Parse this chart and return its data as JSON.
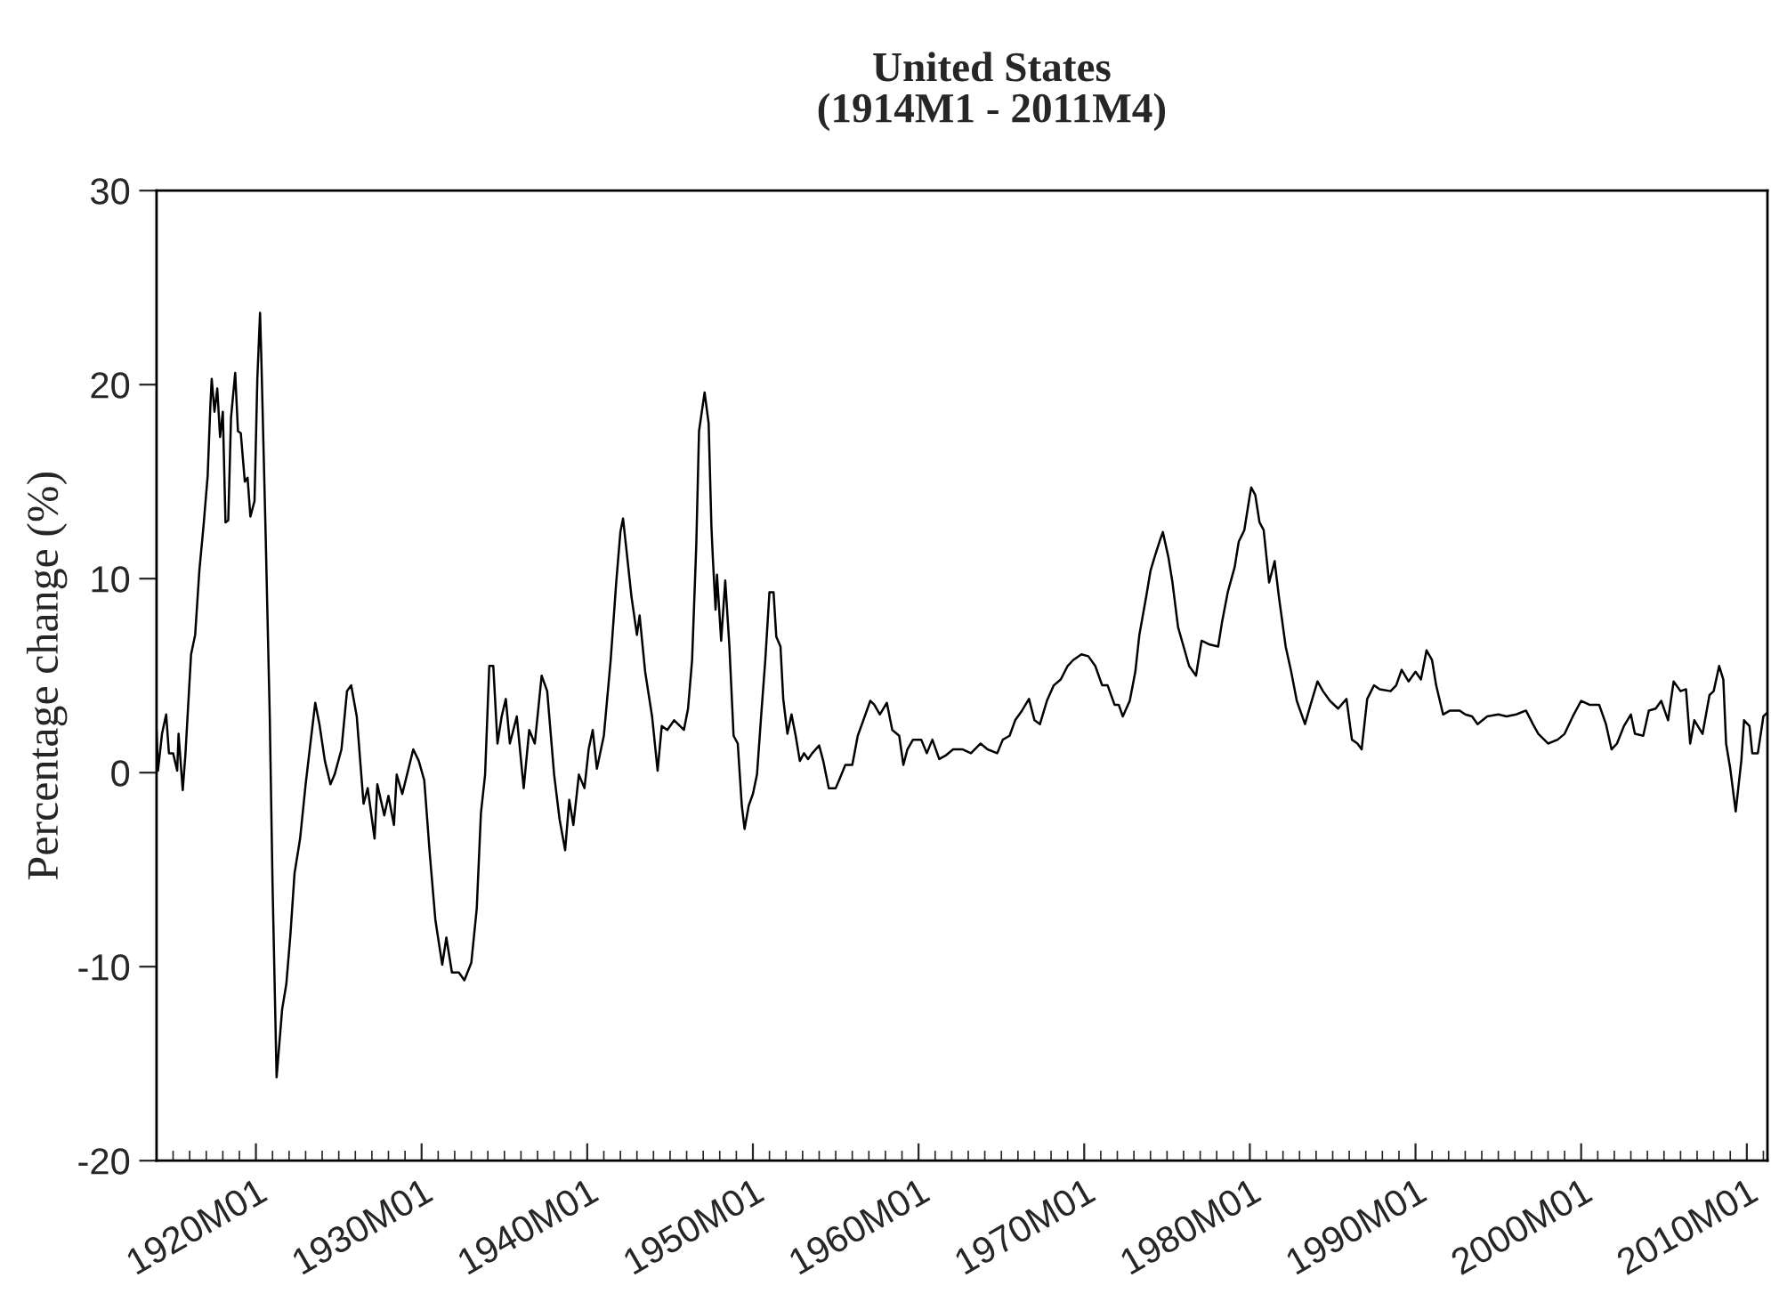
{
  "chart_data": {
    "type": "line",
    "title": "United States",
    "subtitle": "(1914M1 - 2011M4)",
    "ylabel": "Percentage change (%)",
    "xlim": [
      "1914-01",
      "2011-04"
    ],
    "xticks": [
      {
        "value": "1920-01",
        "label": "1920M01"
      },
      {
        "value": "1930-01",
        "label": "1930M01"
      },
      {
        "value": "1940-01",
        "label": "1940M01"
      },
      {
        "value": "1950-01",
        "label": "1950M01"
      },
      {
        "value": "1960-01",
        "label": "1960M01"
      },
      {
        "value": "1970-01",
        "label": "1970M01"
      },
      {
        "value": "1980-01",
        "label": "1980M01"
      },
      {
        "value": "1990-01",
        "label": "1990M01"
      },
      {
        "value": "2000-01",
        "label": "2000M01"
      },
      {
        "value": "2010-01",
        "label": "2010M01"
      }
    ],
    "ylim": [
      -20,
      30
    ],
    "yticks": [
      -20,
      -10,
      0,
      10,
      20,
      30
    ],
    "grid": false,
    "legend": false,
    "marker": "none",
    "line_style": "solid",
    "series": [
      {
        "color": "#000000",
        "x": [
          "1914-01",
          "1914-02",
          "1914-05",
          "1914-08",
          "1914-10",
          "1915-01",
          "1915-04",
          "1915-05",
          "1915-08",
          "1915-10",
          "1916-02",
          "1916-05",
          "1916-08",
          "1916-11",
          "1917-02",
          "1917-04",
          "1917-05",
          "1917-07",
          "1917-09",
          "1917-11",
          "1918-01",
          "1918-03",
          "1918-05",
          "1918-07",
          "1918-10",
          "1918-12",
          "1919-02",
          "1919-05",
          "1919-07",
          "1919-09",
          "1919-12",
          "1920-02",
          "1920-04",
          "1920-05",
          "1920-08",
          "1920-11",
          "1921-01",
          "1921-04",
          "1921-08",
          "1921-11",
          "1922-02",
          "1922-05",
          "1922-09",
          "1923-01",
          "1923-04",
          "1923-08",
          "1923-11",
          "1924-03",
          "1924-07",
          "1924-10",
          "1925-03",
          "1925-07",
          "1925-10",
          "1926-02",
          "1926-07",
          "1926-10",
          "1927-03",
          "1927-05",
          "1927-10",
          "1928-01",
          "1928-05",
          "1928-07",
          "1928-11",
          "1929-07",
          "1929-11",
          "1930-03",
          "1930-07",
          "1930-11",
          "1931-04",
          "1931-07",
          "1931-11",
          "1932-04",
          "1932-08",
          "1933-01",
          "1933-05",
          "1933-08",
          "1933-11",
          "1934-02",
          "1934-05",
          "1934-08",
          "1934-11",
          "1935-02",
          "1935-05",
          "1935-10",
          "1936-03",
          "1936-07",
          "1936-11",
          "1937-04",
          "1937-08",
          "1938-01",
          "1938-05",
          "1938-09",
          "1938-12",
          "1939-03",
          "1939-07",
          "1939-11",
          "1940-02",
          "1940-05",
          "1940-08",
          "1941-01",
          "1941-06",
          "1941-10",
          "1942-01",
          "1942-03",
          "1942-06",
          "1942-09",
          "1943-01",
          "1943-03",
          "1943-07",
          "1943-12",
          "1944-04",
          "1944-07",
          "1944-11",
          "1945-04",
          "1945-11",
          "1946-02",
          "1946-05",
          "1946-08",
          "1946-10",
          "1947-02",
          "1947-05",
          "1947-07",
          "1947-08",
          "1947-10",
          "1947-11",
          "1948-02",
          "1948-05",
          "1948-08",
          "1948-11",
          "1949-02",
          "1949-05",
          "1949-07",
          "1949-10",
          "1950-01",
          "1950-04",
          "1950-07",
          "1950-10",
          "1951-01",
          "1951-04",
          "1951-06",
          "1951-09",
          "1951-11",
          "1952-02",
          "1952-05",
          "1952-08",
          "1952-11",
          "1953-02",
          "1953-05",
          "1953-08",
          "1954-01",
          "1954-04",
          "1954-08",
          "1955-01",
          "1955-04",
          "1955-08",
          "1956-01",
          "1956-05",
          "1956-09",
          "1957-02",
          "1957-05",
          "1957-09",
          "1958-02",
          "1958-06",
          "1958-11",
          "1959-02",
          "1959-05",
          "1959-09",
          "1960-03",
          "1960-07",
          "1960-11",
          "1961-04",
          "1961-09",
          "1962-02",
          "1962-09",
          "1963-03",
          "1963-10",
          "1964-03",
          "1964-10",
          "1965-02",
          "1965-07",
          "1965-11",
          "1966-04",
          "1966-09",
          "1967-01",
          "1967-05",
          "1967-10",
          "1968-03",
          "1968-08",
          "1969-01",
          "1969-05",
          "1969-11",
          "1970-04",
          "1970-09",
          "1971-02",
          "1971-06",
          "1971-11",
          "1972-02",
          "1972-05",
          "1972-10",
          "1973-02",
          "1973-05",
          "1973-10",
          "1974-01",
          "1974-04",
          "1974-08",
          "1974-10",
          "1975-02",
          "1975-05",
          "1975-09",
          "1976-01",
          "1976-05",
          "1976-10",
          "1977-02",
          "1977-08",
          "1978-02",
          "1978-05",
          "1978-09",
          "1979-02",
          "1979-05",
          "1979-09",
          "1980-01",
          "1980-02",
          "1980-05",
          "1980-08",
          "1980-11",
          "1981-03",
          "1981-07",
          "1981-10",
          "1982-03",
          "1982-07",
          "1982-11",
          "1983-05",
          "1983-09",
          "1984-02",
          "1984-06",
          "1984-11",
          "1985-05",
          "1985-11",
          "1986-03",
          "1986-07",
          "1986-10",
          "1987-02",
          "1987-07",
          "1987-11",
          "1988-07",
          "1988-11",
          "1989-03",
          "1989-08",
          "1990-01",
          "1990-05",
          "1990-09",
          "1991-01",
          "1991-04",
          "1991-09",
          "1992-02",
          "1992-09",
          "1993-01",
          "1993-06",
          "1993-10",
          "1994-05",
          "1995-01",
          "1995-07",
          "1996-02",
          "1996-09",
          "1997-02",
          "1997-06",
          "1998-01",
          "1998-08",
          "1999-01",
          "1999-07",
          "2000-01",
          "2000-07",
          "2001-02",
          "2001-07",
          "2001-11",
          "2002-03",
          "2002-08",
          "2003-01",
          "2003-04",
          "2003-10",
          "2004-02",
          "2004-07",
          "2004-11",
          "2005-04",
          "2005-08",
          "2006-01",
          "2006-05",
          "2006-08",
          "2006-11",
          "2007-05",
          "2007-10",
          "2008-01",
          "2008-05",
          "2008-08",
          "2008-10",
          "2009-01",
          "2009-05",
          "2009-09",
          "2009-11",
          "2010-03",
          "2010-05",
          "2010-09",
          "2011-01",
          "2011-04"
        ],
        "values": [
          2.2,
          0.1,
          2.0,
          3.0,
          1.0,
          1.0,
          0.1,
          2.0,
          -0.9,
          1.0,
          6.1,
          7.1,
          10.4,
          12.7,
          15.3,
          18.9,
          20.3,
          18.6,
          19.8,
          17.3,
          18.6,
          12.9,
          13.0,
          18.3,
          20.6,
          17.6,
          17.5,
          15.0,
          15.2,
          13.2,
          14.0,
          20.3,
          23.7,
          21.2,
          12.4,
          2.9,
          -5.7,
          -15.7,
          -12.2,
          -10.9,
          -8.3,
          -5.2,
          -3.4,
          -0.6,
          1.2,
          3.6,
          2.5,
          0.6,
          -0.6,
          -0.1,
          1.2,
          4.2,
          4.5,
          2.9,
          -1.6,
          -0.8,
          -3.4,
          -0.6,
          -2.2,
          -1.2,
          -2.7,
          -0.1,
          -1.1,
          1.2,
          0.6,
          -0.4,
          -4.2,
          -7.6,
          -9.9,
          -8.5,
          -10.3,
          -10.3,
          -10.7,
          -9.8,
          -7.0,
          -2.1,
          -0.1,
          5.5,
          5.5,
          1.5,
          2.9,
          3.8,
          1.5,
          2.9,
          -0.8,
          2.2,
          1.5,
          5.0,
          4.2,
          -0.1,
          -2.4,
          -4.0,
          -1.4,
          -2.7,
          -0.1,
          -0.8,
          1.2,
          2.2,
          0.2,
          1.9,
          5.8,
          9.8,
          12.4,
          13.1,
          11.1,
          9.1,
          7.1,
          8.1,
          5.2,
          2.9,
          0.1,
          2.4,
          2.2,
          2.7,
          2.2,
          3.3,
          5.8,
          11.7,
          17.6,
          19.6,
          18.0,
          12.7,
          11.1,
          8.4,
          10.2,
          6.8,
          9.9,
          6.5,
          1.9,
          1.5,
          -1.7,
          -2.9,
          -1.7,
          -1.1,
          -0.1,
          2.9,
          5.8,
          9.3,
          9.3,
          7.0,
          6.5,
          3.8,
          2.0,
          3.0,
          1.9,
          0.6,
          1.0,
          0.7,
          1.0,
          1.4,
          0.6,
          -0.8,
          -0.8,
          -0.3,
          0.4,
          0.4,
          1.9,
          2.7,
          3.7,
          3.5,
          3.0,
          3.6,
          2.2,
          1.9,
          0.4,
          1.2,
          1.7,
          1.7,
          1.0,
          1.7,
          0.7,
          0.9,
          1.2,
          1.2,
          1.0,
          1.5,
          1.2,
          1.0,
          1.7,
          1.9,
          2.7,
          3.2,
          3.8,
          2.7,
          2.5,
          3.7,
          4.5,
          4.8,
          5.5,
          5.8,
          6.1,
          6.0,
          5.5,
          4.5,
          4.5,
          3.5,
          3.5,
          2.9,
          3.7,
          5.2,
          7.1,
          9.1,
          10.4,
          11.1,
          12.0,
          12.4,
          11.1,
          9.8,
          7.5,
          6.5,
          5.5,
          5.0,
          6.8,
          6.6,
          6.5,
          7.8,
          9.3,
          10.6,
          11.9,
          12.5,
          14.3,
          14.7,
          14.3,
          12.9,
          12.5,
          9.8,
          10.9,
          9.1,
          6.5,
          5.2,
          3.7,
          2.5,
          3.5,
          4.7,
          4.2,
          3.7,
          3.3,
          3.8,
          1.7,
          1.5,
          1.2,
          3.8,
          4.5,
          4.3,
          4.2,
          4.5,
          5.3,
          4.7,
          5.2,
          4.8,
          6.3,
          5.8,
          4.5,
          3.0,
          3.2,
          3.2,
          3.0,
          2.9,
          2.5,
          2.9,
          3.0,
          2.9,
          3.0,
          3.2,
          2.5,
          2.0,
          1.5,
          1.7,
          2.0,
          2.9,
          3.7,
          3.5,
          3.5,
          2.5,
          1.2,
          1.5,
          2.4,
          3.0,
          2.0,
          1.9,
          3.2,
          3.3,
          3.7,
          2.7,
          4.7,
          4.2,
          4.3,
          1.5,
          2.7,
          2.0,
          4.0,
          4.2,
          5.5,
          4.8,
          1.5,
          0.2,
          -2.0,
          0.6,
          2.7,
          2.4,
          1.0,
          1.0,
          2.9,
          3.1
        ]
      }
    ]
  }
}
